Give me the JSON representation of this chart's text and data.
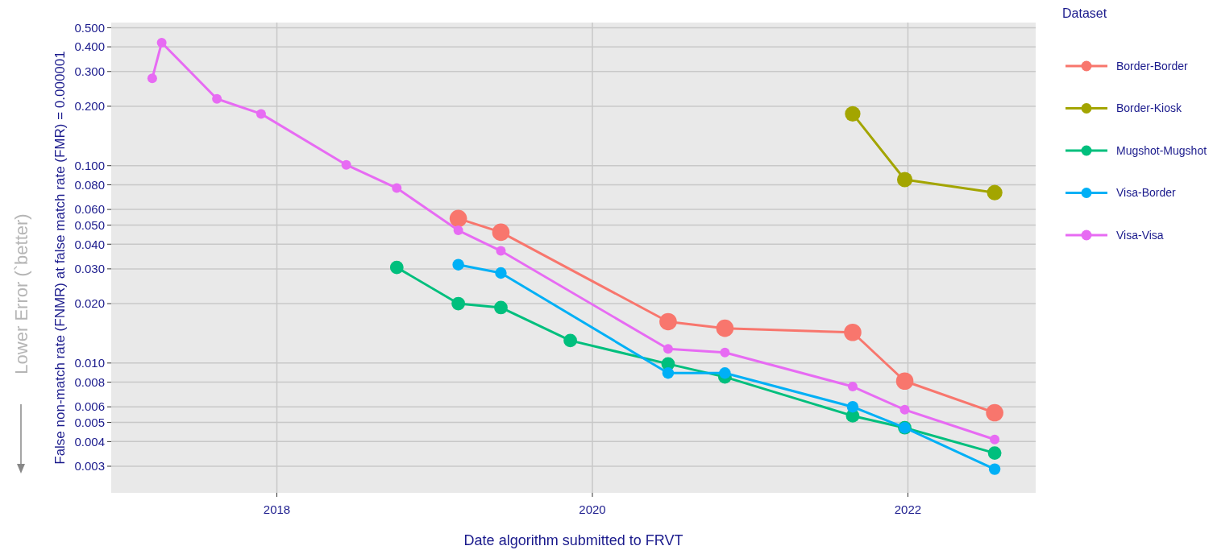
{
  "chart_data": {
    "type": "line",
    "xlabel": "Date algorithm submitted to FRVT",
    "ylabel": "False non-match rate (FNMR) at false match rate (FMR) = 0.000001",
    "legend_title": "Dataset",
    "annotations": [
      "Lower Error (`better)"
    ],
    "log": "y",
    "grid": true,
    "legend": "right",
    "marker": "circle",
    "line_style": "solid",
    "xlim": [
      2016.95,
      2022.81
    ],
    "xticks": [
      2018,
      2020,
      2022
    ],
    "ylim": [
      0.0022,
      0.531
    ],
    "yticks": [
      {
        "value": 0.003,
        "label": "0.003"
      },
      {
        "value": 0.004,
        "label": "0.004"
      },
      {
        "value": 0.005,
        "label": "0.005"
      },
      {
        "value": 0.006,
        "label": "0.006"
      },
      {
        "value": 0.008,
        "label": "0.008"
      },
      {
        "value": 0.01,
        "label": "0.010"
      },
      {
        "value": 0.02,
        "label": "0.020"
      },
      {
        "value": 0.03,
        "label": "0.030"
      },
      {
        "value": 0.04,
        "label": "0.040"
      },
      {
        "value": 0.05,
        "label": "0.050"
      },
      {
        "value": 0.06,
        "label": "0.060"
      },
      {
        "value": 0.08,
        "label": "0.080"
      },
      {
        "value": 0.1,
        "label": "0.100"
      },
      {
        "value": 0.2,
        "label": "0.200"
      },
      {
        "value": 0.3,
        "label": "0.300"
      },
      {
        "value": 0.4,
        "label": "0.400"
      },
      {
        "value": 0.5,
        "label": "0.500"
      }
    ],
    "series": [
      {
        "name": "Border-Border",
        "color": "#f8766d",
        "x": [
          2019.15,
          2019.42,
          2020.48,
          2020.84,
          2021.65,
          2021.98,
          2022.55
        ],
        "values": [
          0.054,
          0.046,
          0.0162,
          0.015,
          0.0143,
          0.0081,
          0.0056
        ]
      },
      {
        "name": "Border-Kiosk",
        "color": "#a3a500",
        "x": [
          2021.65,
          2021.98,
          2022.55
        ],
        "values": [
          0.183,
          0.085,
          0.073
        ]
      },
      {
        "name": "Mugshot-Mugshot",
        "color": "#00bf7d",
        "x": [
          2018.76,
          2019.15,
          2019.42,
          2019.86,
          2020.48,
          2020.84,
          2021.65,
          2021.98,
          2022.55
        ],
        "values": [
          0.0305,
          0.02,
          0.0191,
          0.013,
          0.0099,
          0.0085,
          0.0054,
          0.0047,
          0.0035
        ]
      },
      {
        "name": "Visa-Border",
        "color": "#00b0f6",
        "x": [
          2019.15,
          2019.42,
          2020.48,
          2020.84,
          2021.65,
          2021.98,
          2022.55
        ],
        "values": [
          0.0315,
          0.0286,
          0.0089,
          0.0089,
          0.006,
          0.0047,
          0.0029
        ]
      },
      {
        "name": "Visa-Visa",
        "color": "#e76bf3",
        "x": [
          2017.21,
          2017.27,
          2017.62,
          2017.9,
          2018.44,
          2018.76,
          2019.15,
          2019.42,
          2020.48,
          2020.84,
          2021.65,
          2021.98,
          2022.55
        ],
        "values": [
          0.277,
          0.42,
          0.218,
          0.183,
          0.101,
          0.077,
          0.047,
          0.037,
          0.0118,
          0.0113,
          0.0076,
          0.0058,
          0.0041
        ]
      }
    ]
  }
}
